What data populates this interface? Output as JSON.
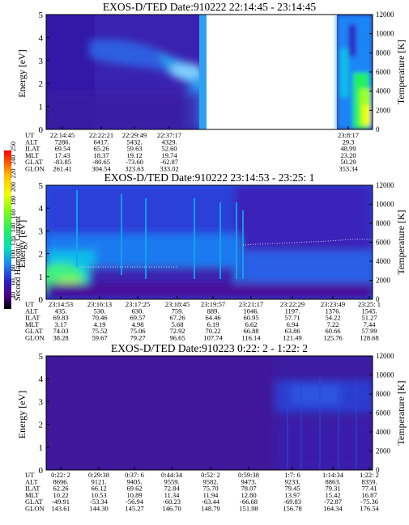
{
  "colorbar": {
    "label": "Second Harmonic Current",
    "ticks": [
      "40",
      "60",
      "80",
      "100",
      "120",
      "140",
      "160",
      "180",
      "200",
      "220",
      "240",
      "250"
    ],
    "colors": [
      "#000000",
      "#4b0082",
      "#3a0aa0",
      "#2a25c8",
      "#1e4fe8",
      "#1a85f5",
      "#10bfe8",
      "#00e0c0",
      "#20f060",
      "#80ff10",
      "#f0ff00",
      "#ffc000",
      "#ff5000",
      "#ff0000"
    ]
  },
  "chart_data": [
    {
      "type": "heatmap",
      "title": "EXOS-D/TED   Date:910222  22:14:45 - 23:14:45",
      "ylabel": "Energy [eV]",
      "y2label": "Temperature [K]",
      "ylim": [
        0,
        5
      ],
      "y2lim": [
        0,
        12000
      ],
      "yticks": [
        "0",
        "1",
        "2",
        "3",
        "4",
        "5"
      ],
      "y2ticks": [
        "0",
        "2000",
        "4000",
        "6000",
        "8000",
        "10000",
        "12000"
      ],
      "table_labels": [
        "UT",
        "ALT",
        "ILAT",
        "MLT",
        "GLAT",
        "GLON"
      ],
      "columns": [
        {
          "ut": "22:14:45",
          "alt": "7286.",
          "ilat": "69.54",
          "mlt": "17.43",
          "glat": "-83.85",
          "glon": "261.41"
        },
        {
          "ut": "22:22:21",
          "alt": "6417.",
          "ilat": "65.26",
          "mlt": "18.37",
          "glat": "-80.65",
          "glon": "304.54"
        },
        {
          "ut": "22:29:49",
          "alt": "5432.",
          "ilat": "59.63",
          "mlt": "19.12",
          "glat": "-73.60",
          "glon": "323.63"
        },
        {
          "ut": "22:37:17",
          "alt": "4329.",
          "ilat": "52.60",
          "mlt": "19.74",
          "glat": "-62.87",
          "glon": "333.02"
        },
        {
          "ut": "23:8:17",
          "alt": "29.3",
          "ilat": "48.99",
          "mlt": "23.20",
          "glat": "50.29",
          "glon": "353.34"
        }
      ],
      "data_gap_ut": [
        "22:44:00",
        "23:02:00"
      ]
    },
    {
      "type": "heatmap",
      "title": "EXOS-D/TED   Date:910222  23:14:53 - 23:25: 1",
      "ylabel": "Energy [eV]",
      "y2label": "Temperature [K]",
      "ylim": [
        0,
        5
      ],
      "y2lim": [
        0,
        12000
      ],
      "yticks": [
        "0",
        "1",
        "2",
        "3",
        "4",
        "5"
      ],
      "y2ticks": [
        "0",
        "2000",
        "4000",
        "6000",
        "8000",
        "10000",
        "12000"
      ],
      "table_labels": [
        "UT",
        "ALT",
        "ILAT",
        "MLT",
        "GLAT",
        "GLON"
      ],
      "columns": [
        {
          "ut": "23:14:53",
          "alt": "435.",
          "ilat": "69.83",
          "mlt": "3.17",
          "glat": "74.03",
          "glon": "38.28"
        },
        {
          "ut": "23:16:13",
          "alt": "530.",
          "ilat": "70.46",
          "mlt": "4.19",
          "glat": "75.52",
          "glon": "59.67"
        },
        {
          "ut": "23:17:25",
          "alt": "630.",
          "ilat": "69.57",
          "mlt": "4.98",
          "glat": "75.06",
          "glon": "79.27"
        },
        {
          "ut": "23:18:45",
          "alt": "759.",
          "ilat": "67.26",
          "mlt": "5.68",
          "glat": "72.92",
          "glon": "96.65"
        },
        {
          "ut": "23:19:57",
          "alt": "889.",
          "ilat": "64.46",
          "mlt": "6.19",
          "glat": "70.22",
          "glon": "107.74"
        },
        {
          "ut": "23:21:17",
          "alt": "1046.",
          "ilat": "60.95",
          "mlt": "6.62",
          "glat": "66.88",
          "glon": "116.14"
        },
        {
          "ut": "23:22:29",
          "alt": "1197.",
          "ilat": "57.71",
          "mlt": "6.94",
          "glat": "63.86",
          "glon": "121.49"
        },
        {
          "ut": "23:23:49",
          "alt": "1376.",
          "ilat": "54.22",
          "mlt": "7.22",
          "glat": "60.66",
          "glon": "125.76"
        },
        {
          "ut": "23:25: 1",
          "alt": "1545.",
          "ilat": "51.27",
          "mlt": "7.44",
          "glat": "57.99",
          "glon": "128.68"
        }
      ]
    },
    {
      "type": "heatmap",
      "title": "EXOS-D/TED   Date:910223  0:22: 2 - 1:22: 2",
      "ylabel": "Energy [eV]",
      "y2label": "Temperature [K]",
      "ylim": [
        0,
        5
      ],
      "y2lim": [
        0,
        12000
      ],
      "yticks": [
        "0",
        "1",
        "2",
        "3",
        "4",
        "5"
      ],
      "y2ticks": [
        "0",
        "2000",
        "4000",
        "6000",
        "8000",
        "10000",
        "12000"
      ],
      "table_labels": [
        "UT",
        "ALT",
        "ILAT",
        "MLT",
        "GLAT",
        "GLON"
      ],
      "columns": [
        {
          "ut": "0:22: 2",
          "alt": "8696.",
          "ilat": "62.26",
          "mlt": "10.22",
          "glat": "-49.91",
          "glon": "143.61"
        },
        {
          "ut": "0:29:38",
          "alt": "9121.",
          "ilat": "66.12",
          "mlt": "10.53",
          "glat": "-53.34",
          "glon": "144.30"
        },
        {
          "ut": "0:37: 6",
          "alt": "9405.",
          "ilat": "69.62",
          "mlt": "10.89",
          "glat": "-56.94",
          "glon": "145.27"
        },
        {
          "ut": "0:44:34",
          "alt": "9559.",
          "ilat": "72.84",
          "mlt": "11.34",
          "glat": "-60.23",
          "glon": "146.70"
        },
        {
          "ut": "0:52: 2",
          "alt": "9582.",
          "ilat": "75.70",
          "mlt": "11.94",
          "glat": "-63.44",
          "glon": "148.79"
        },
        {
          "ut": "0:59:38",
          "alt": "9473.",
          "ilat": "78.07",
          "mlt": "12.80",
          "glat": "-66.68",
          "glon": "151.98"
        },
        {
          "ut": "1:7: 6",
          "alt": "9233.",
          "ilat": "79.45",
          "mlt": "13.97",
          "glat": "-69.83",
          "glon": "156.78"
        },
        {
          "ut": "1:14:34",
          "alt": "8863.",
          "ilat": "79.31",
          "mlt": "15.42",
          "glat": "-72.87",
          "glon": "164.34"
        },
        {
          "ut": "1:22: 2",
          "alt": "8359.",
          "ilat": "77.41",
          "mlt": "16.87",
          "glat": "-75.36",
          "glon": "176.54"
        }
      ]
    }
  ]
}
